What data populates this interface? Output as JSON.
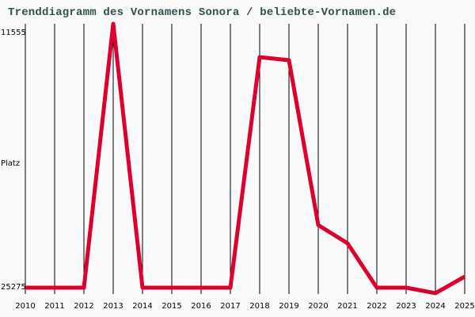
{
  "title": "Trenddiagramm des Vornamens Sonora / beliebte-Vornamen.de",
  "y_axis": {
    "label": "Platz",
    "top_label": "11555",
    "bottom_label": "25275"
  },
  "colors": {
    "line": "#dc002d",
    "title": "#2f4f4f",
    "grid": "#000000",
    "background": "#fafafa"
  },
  "chart_data": {
    "type": "line",
    "title": "Trenddiagramm des Vornamens Sonora / beliebte-Vornamen.de",
    "xlabel": "",
    "ylabel": "Platz",
    "ylim": [
      25275,
      11555
    ],
    "y_inverted": true,
    "grid": "vertical",
    "categories": [
      "2010",
      "2011",
      "2012",
      "2013",
      "2014",
      "2015",
      "2016",
      "2017",
      "2018",
      "2019",
      "2020",
      "2021",
      "2022",
      "2023",
      "2024",
      "2025"
    ],
    "series": [
      {
        "name": "Sonora",
        "values": [
          25275,
          25275,
          25275,
          11040,
          25275,
          25275,
          25275,
          25275,
          12840,
          13010,
          21900,
          22880,
          25275,
          25275,
          25570,
          24680
        ]
      }
    ]
  }
}
